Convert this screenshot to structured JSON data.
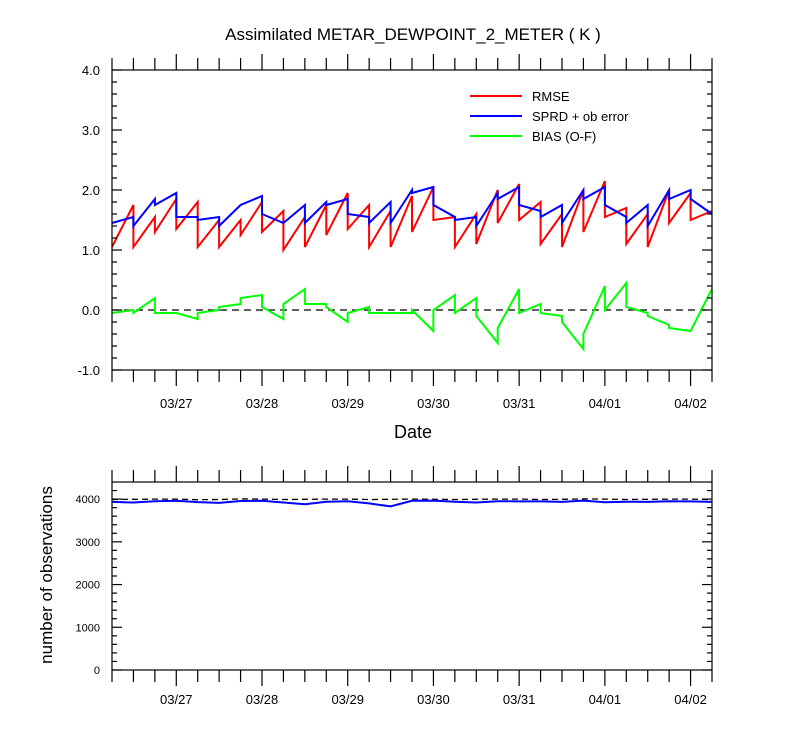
{
  "chart_data": [
    {
      "type": "line",
      "title": "Assimilated METAR_DEWPOINT_2_METER ( K )",
      "xlabel": "Date",
      "ylabel": "",
      "x_range": [
        "03/26 06Z",
        "04/02 06Z"
      ],
      "x_tick_labels": [
        "03/27",
        "03/28",
        "03/29",
        "03/30",
        "03/31",
        "04/01",
        "04/02"
      ],
      "ylim": [
        -1.0,
        4.0
      ],
      "y_tick_labels": [
        "4.0",
        "3.0",
        "2.0",
        "1.0",
        "0.0",
        "-1.0"
      ],
      "reference_line": {
        "y": 0.0,
        "style": "dashed"
      },
      "legend_position": "top-right",
      "x_step_hours": 6,
      "series": [
        {
          "name": "RMSE",
          "color": "#ff0000",
          "style": "sawtooth",
          "start": [
            1.05,
            1.05,
            1.3,
            1.35,
            1.05,
            1.05,
            1.25,
            1.3,
            1.0,
            1.05,
            1.25,
            1.35,
            1.05,
            1.05,
            1.3,
            1.5,
            1.05,
            1.1,
            1.45,
            1.5,
            1.1,
            1.05,
            1.3,
            1.55,
            1.1,
            1.05,
            1.45,
            1.5
          ],
          "end": [
            1.75,
            1.55,
            1.85,
            1.8,
            1.5,
            1.5,
            1.8,
            1.65,
            1.55,
            1.75,
            1.95,
            1.75,
            1.65,
            1.9,
            2.05,
            1.55,
            1.6,
            2.0,
            2.1,
            1.8,
            1.6,
            2.0,
            2.15,
            1.7,
            1.6,
            2.0,
            1.95,
            1.65
          ]
        },
        {
          "name": "SPRD + ob error",
          "color": "#0000ff",
          "style": "sawtooth",
          "start": [
            1.45,
            1.4,
            1.75,
            1.55,
            1.5,
            1.4,
            1.75,
            1.6,
            1.45,
            1.45,
            1.75,
            1.6,
            1.45,
            1.45,
            1.95,
            1.75,
            1.5,
            1.4,
            1.85,
            1.75,
            1.55,
            1.45,
            1.85,
            1.75,
            1.45,
            1.4,
            1.85,
            1.85
          ],
          "end": [
            1.55,
            1.85,
            1.95,
            1.55,
            1.55,
            1.75,
            1.9,
            1.45,
            1.75,
            1.8,
            1.85,
            1.55,
            1.8,
            2.0,
            2.05,
            1.55,
            1.55,
            1.95,
            2.05,
            1.65,
            1.75,
            2.0,
            2.05,
            1.55,
            1.75,
            2.0,
            2.0,
            1.6
          ]
        },
        {
          "name": "BIAS (O-F)",
          "color": "#00ff00",
          "style": "sawtooth",
          "start": [
            -0.05,
            -0.05,
            -0.05,
            -0.05,
            -0.05,
            0.05,
            0.2,
            0.05,
            0.1,
            0.1,
            0.05,
            -0.05,
            -0.05,
            -0.05,
            0.0,
            0.0,
            -0.05,
            -0.1,
            -0.3,
            -0.05,
            -0.05,
            -0.2,
            -0.4,
            0.0,
            0.05,
            -0.1,
            -0.3,
            -0.35
          ],
          "end": [
            0.0,
            0.2,
            -0.05,
            -0.15,
            0.0,
            0.1,
            0.25,
            -0.15,
            0.35,
            0.1,
            -0.2,
            0.05,
            -0.05,
            -0.05,
            -0.35,
            0.25,
            0.2,
            -0.55,
            0.35,
            0.1,
            -0.1,
            -0.65,
            0.4,
            0.45,
            -0.05,
            -0.25,
            -0.35,
            0.35
          ]
        }
      ]
    },
    {
      "type": "line",
      "title": "",
      "xlabel": "",
      "ylabel": "number of observations",
      "x_tick_labels": [
        "03/27",
        "03/28",
        "03/29",
        "03/30",
        "03/31",
        "04/01",
        "04/02"
      ],
      "ylim": [
        0,
        4400
      ],
      "y_tick_labels": [
        "4000",
        "3000",
        "2000",
        "1000",
        "0"
      ],
      "x_step_hours": 6,
      "series": [
        {
          "name": "",
          "color": "#000000",
          "style": "dashed",
          "values": [
            3990,
            3995,
            4000,
            4000,
            3985,
            3990,
            4005,
            4000,
            3990,
            3995,
            4000,
            4000,
            3990,
            3995,
            4000,
            3995,
            3990,
            3995,
            4000,
            4000,
            3990,
            3995,
            4005,
            4000,
            3990,
            3995,
            4000,
            4000,
            3990
          ]
        },
        {
          "name": "",
          "color": "#0000ff",
          "style": "solid",
          "values": [
            3935,
            3920,
            3950,
            3960,
            3930,
            3910,
            3955,
            3960,
            3920,
            3880,
            3940,
            3950,
            3900,
            3830,
            3960,
            3965,
            3940,
            3920,
            3950,
            3945,
            3945,
            3935,
            3965,
            3925,
            3940,
            3935,
            3950,
            3945,
            3935
          ]
        }
      ]
    }
  ]
}
